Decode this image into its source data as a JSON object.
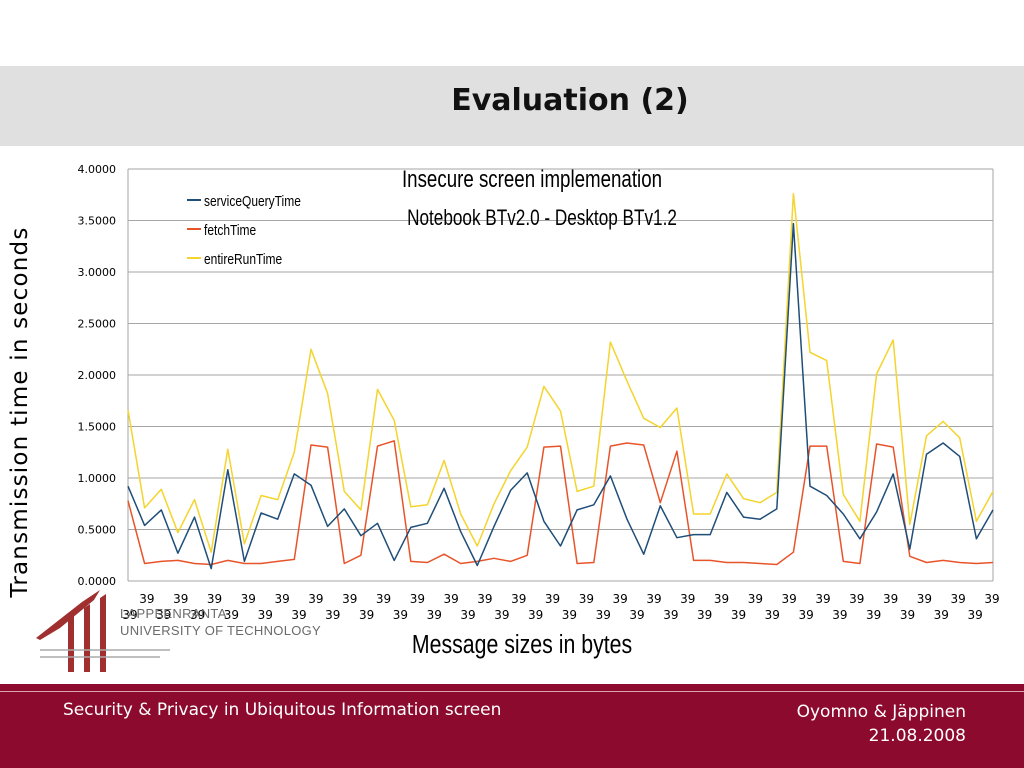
{
  "slide": {
    "title": "Evaluation (2)",
    "y_axis_label": "Transmission time in seconds"
  },
  "logo": {
    "line1": "LAPPEENRANTA",
    "line2": "UNIVERSITY OF TECHNOLOGY"
  },
  "footer": {
    "left": "Security & Privacy in Ubiquitous Information screen",
    "authors": "Oyomno & Jäppinen",
    "date": "21.08.2008"
  },
  "chart_data": {
    "type": "line",
    "title": "Insecure screen implemenation",
    "subtitle": "Notebook BTv2.0 - Desktop BTv1.2",
    "xlabel": "Message sizes in bytes",
    "ylim": [
      0,
      4
    ],
    "yticks": [
      "0.0000",
      "0.5000",
      "1.0000",
      "1.5000",
      "2.0000",
      "2.5000",
      "3.0000",
      "3.5000",
      "4.0000"
    ],
    "x_tick_label": "39",
    "x_tick_count": 52,
    "grid": true,
    "legend_position": "top-left",
    "series": [
      {
        "name": "serviceQueryTime",
        "color": "#1f4e79",
        "values": [
          0.92,
          0.54,
          0.69,
          0.27,
          0.62,
          0.12,
          1.08,
          0.19,
          0.66,
          0.6,
          1.04,
          0.93,
          0.53,
          0.7,
          0.44,
          0.56,
          0.2,
          0.52,
          0.56,
          0.9,
          0.48,
          0.15,
          0.53,
          0.88,
          1.05,
          0.58,
          0.34,
          0.69,
          0.74,
          1.02,
          0.6,
          0.26,
          0.73,
          0.42,
          0.45,
          0.45,
          0.86,
          0.62,
          0.6,
          0.7,
          3.47,
          0.92,
          0.83,
          0.65,
          0.41,
          0.67,
          1.04,
          0.31,
          1.23,
          1.34,
          1.21,
          0.41,
          0.69
        ]
      },
      {
        "name": "fetchTime",
        "color": "#e8542a",
        "values": [
          0.78,
          0.17,
          0.19,
          0.2,
          0.17,
          0.16,
          0.2,
          0.17,
          0.17,
          0.19,
          0.21,
          1.32,
          1.3,
          0.17,
          0.25,
          1.31,
          1.36,
          0.19,
          0.18,
          0.26,
          0.17,
          0.19,
          0.22,
          0.19,
          0.25,
          1.3,
          1.31,
          0.17,
          0.18,
          1.31,
          1.34,
          1.32,
          0.76,
          1.26,
          0.2,
          0.2,
          0.18,
          0.18,
          0.17,
          0.16,
          0.28,
          1.31,
          1.31,
          0.19,
          0.17,
          1.33,
          1.3,
          0.24,
          0.18,
          0.2,
          0.18,
          0.17,
          0.18
        ]
      },
      {
        "name": "entireRunTime",
        "color": "#f4d42d",
        "values": [
          1.66,
          0.71,
          0.89,
          0.47,
          0.79,
          0.28,
          1.28,
          0.36,
          0.83,
          0.79,
          1.25,
          2.25,
          1.82,
          0.87,
          0.69,
          1.86,
          1.56,
          0.72,
          0.74,
          1.17,
          0.65,
          0.34,
          0.75,
          1.07,
          1.3,
          1.89,
          1.65,
          0.87,
          0.92,
          2.32,
          1.94,
          1.58,
          1.49,
          1.68,
          0.65,
          0.65,
          1.04,
          0.8,
          0.76,
          0.86,
          3.76,
          2.22,
          2.14,
          0.84,
          0.58,
          2.01,
          2.34,
          0.55,
          1.41,
          1.55,
          1.39,
          0.58,
          0.87
        ]
      }
    ]
  }
}
